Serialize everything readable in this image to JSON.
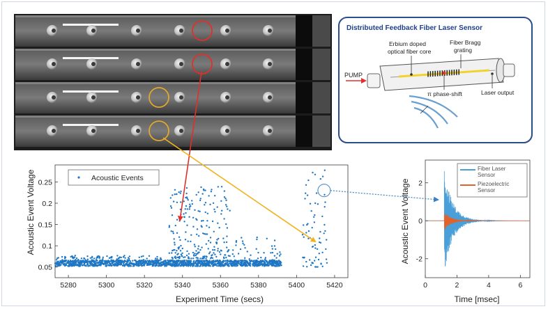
{
  "chart_data": [
    {
      "type": "scatter",
      "xlabel": "Experiment Time (secs)",
      "ylabel": "Acoustic Event Voltage",
      "xlim": [
        5273,
        5427
      ],
      "ylim": [
        0.025,
        0.29
      ],
      "xticks": [
        5280,
        5300,
        5320,
        5340,
        5360,
        5380,
        5400,
        5420
      ],
      "yticks": [
        0.05,
        0.1,
        0.15,
        0.2,
        0.25
      ],
      "ytick_labels": [
        "0.05",
        "0.1",
        "0.15",
        "0.2",
        "0.25"
      ],
      "legend": {
        "position": "top-left"
      },
      "series": [
        {
          "name": "Acoustic Events",
          "color": "#1f77c4",
          "groups": [
            {
              "x": [
                5273,
                5392
              ],
              "y": [
                0.052,
                0.066
              ],
              "n": 1400
            },
            {
              "x": [
                5273,
                5330
              ],
              "y": [
                0.066,
                0.077
              ],
              "n": 80
            },
            {
              "x": [
                5333,
                5365
              ],
              "y": [
                0.07,
                0.24
              ],
              "n": 240
            },
            {
              "x": [
                5365,
                5392
              ],
              "y": [
                0.06,
                0.12
              ],
              "n": 60
            },
            {
              "x": [
                5403,
                5416
              ],
              "y": [
                0.05,
                0.28
              ],
              "n": 70
            }
          ],
          "highlight": {
            "x": 5414.5,
            "y": 0.23
          }
        }
      ]
    },
    {
      "type": "line",
      "xlabel": "Time [msec]",
      "ylabel": "Acoustic Event Voltage",
      "xlim": [
        0,
        6.6
      ],
      "ylim": [
        -3,
        3.2
      ],
      "xticks": [
        0,
        2,
        4,
        6
      ],
      "yticks": [
        -2,
        0,
        2
      ],
      "ytick_labels": [
        "-2",
        "0",
        "2"
      ],
      "legend": {
        "position": "top-right"
      },
      "series": [
        {
          "name": "Fiber Laser Sensor",
          "legend_lines": [
            "Fiber Laser",
            "Sensor"
          ],
          "color": "#4a9fd8",
          "onset": 1.2,
          "peak_pos": 2.7,
          "peak_neg": -2.75,
          "decay": 0.55
        },
        {
          "name": "Piezoelectric Sensor",
          "legend_lines": [
            "Piezoelectric",
            "Sensor"
          ],
          "color": "#e0622c",
          "onset": 1.2,
          "peak_pos": 0.5,
          "peak_neg": -0.5,
          "decay": 0.45
        }
      ]
    }
  ],
  "diagram": {
    "title": "Distributed Feedback Fiber Laser Sensor",
    "labels": {
      "core": [
        "Erbium doped",
        "optical fiber core"
      ],
      "grating": [
        "Fiber Bragg",
        "grating"
      ],
      "pump": "PUMP",
      "phase_shift": "π phase-shift",
      "output": "Laser output"
    },
    "colors": {
      "frame": "#2b4c8c",
      "title": "#1f3f8c",
      "pump_arrow": "#e03030",
      "laser": "#f2d22e",
      "wave": "#6a9fd0"
    }
  },
  "photo": {
    "panels": 4,
    "circle_colors": [
      "#e0302a",
      "#e0302a",
      "#e3a72a",
      "#e3a72a"
    ]
  },
  "arrows": {
    "red": "#e0302a",
    "yellow": "#f0b21e",
    "blue": "#3b7fc4"
  }
}
